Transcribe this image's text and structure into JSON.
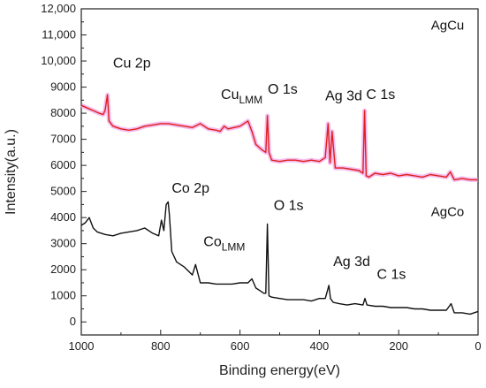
{
  "chart_data": {
    "type": "line",
    "title": "",
    "xlabel": "Binding energy(eV)",
    "ylabel": "Intensity(a.u.)",
    "xlim": [
      1000,
      0
    ],
    "ylim": [
      -500,
      12000
    ],
    "x_reversed": true,
    "xticks": [
      1000,
      800,
      600,
      400,
      200,
      0
    ],
    "yticks": [
      0,
      1000,
      2000,
      3000,
      4000,
      5000,
      6000,
      7000,
      8000,
      9000,
      10000,
      11000,
      12000
    ],
    "ytick_labels": [
      "0",
      "1000",
      "2000",
      "3000",
      "4000",
      "5000",
      "6000",
      "7000",
      "8000",
      "9000",
      "10,000",
      "11,000",
      "12,000"
    ],
    "grid": false,
    "series": [
      {
        "name": "AgCu",
        "color": "#e0201c",
        "halo_color": "#f0a0e8",
        "x": [
          1000,
          985,
          970,
          955,
          945,
          940,
          934,
          930,
          920,
          900,
          880,
          860,
          840,
          820,
          800,
          780,
          760,
          740,
          720,
          700,
          680,
          660,
          650,
          640,
          630,
          600,
          580,
          570,
          560,
          545,
          535,
          531,
          527,
          520,
          500,
          480,
          460,
          440,
          420,
          400,
          385,
          378,
          373,
          368,
          360,
          340,
          320,
          300,
          290,
          286,
          282,
          275,
          260,
          240,
          220,
          200,
          180,
          160,
          140,
          120,
          100,
          80,
          70,
          60,
          40,
          20,
          0
        ],
        "y": [
          8300,
          8200,
          8100,
          8000,
          7950,
          8100,
          8700,
          7700,
          7500,
          7400,
          7350,
          7400,
          7500,
          7550,
          7600,
          7600,
          7550,
          7500,
          7450,
          7600,
          7400,
          7350,
          7300,
          7500,
          7400,
          7500,
          7700,
          7300,
          6800,
          6600,
          6500,
          7900,
          6500,
          6200,
          6150,
          6200,
          6200,
          6150,
          6200,
          6150,
          6300,
          7600,
          6100,
          7300,
          5900,
          5900,
          5850,
          5800,
          5700,
          8100,
          5600,
          5550,
          5700,
          5650,
          5700,
          5600,
          5650,
          5600,
          5550,
          5650,
          5600,
          5550,
          5750,
          5450,
          5500,
          5450,
          5450
        ]
      },
      {
        "name": "AgCo",
        "color": "#111111",
        "x": [
          1000,
          990,
          980,
          970,
          960,
          940,
          920,
          900,
          880,
          860,
          840,
          820,
          805,
          798,
          792,
          786,
          781,
          778,
          772,
          760,
          740,
          720,
          712,
          700,
          680,
          660,
          640,
          620,
          600,
          580,
          570,
          560,
          550,
          540,
          535,
          531,
          527,
          520,
          500,
          480,
          460,
          440,
          420,
          400,
          385,
          376,
          372,
          365,
          350,
          330,
          310,
          290,
          285,
          280,
          260,
          240,
          220,
          200,
          180,
          160,
          140,
          120,
          100,
          80,
          68,
          60,
          40,
          20,
          0
        ],
        "y": [
          3700,
          3800,
          4000,
          3600,
          3450,
          3350,
          3300,
          3400,
          3450,
          3500,
          3600,
          3400,
          3300,
          3900,
          3500,
          4500,
          4600,
          4100,
          2700,
          2300,
          2100,
          1800,
          2200,
          1500,
          1500,
          1450,
          1450,
          1450,
          1500,
          1500,
          1650,
          1300,
          1200,
          1100,
          1100,
          3750,
          1000,
          950,
          900,
          850,
          850,
          850,
          800,
          900,
          900,
          1400,
          900,
          750,
          700,
          650,
          700,
          650,
          900,
          650,
          600,
          600,
          550,
          550,
          550,
          500,
          500,
          450,
          450,
          450,
          700,
          350,
          350,
          300,
          400
        ]
      }
    ],
    "annotations": [
      {
        "name": "cu-2p",
        "text": "Cu 2p",
        "sub": "",
        "x": 920,
        "y": 9750
      },
      {
        "name": "cu-lmm",
        "text": "Cu",
        "sub": "LMM",
        "x": 648,
        "y": 8550
      },
      {
        "name": "o-1s-agcu",
        "text": "O 1s",
        "sub": "",
        "x": 530,
        "y": 8750
      },
      {
        "name": "ag-3d-agcu",
        "text": "Ag 3d",
        "sub": "",
        "x": 385,
        "y": 8500
      },
      {
        "name": "c-1s-agcu",
        "text": "C 1s",
        "sub": "",
        "x": 282,
        "y": 8550
      },
      {
        "name": "co-2p",
        "text": "Co 2p",
        "sub": "",
        "x": 772,
        "y": 4950
      },
      {
        "name": "co-lmm",
        "text": "Co",
        "sub": "LMM",
        "x": 692,
        "y": 2900
      },
      {
        "name": "o-1s-agco",
        "text": "O 1s",
        "sub": "",
        "x": 515,
        "y": 4300
      },
      {
        "name": "ag-3d-agco",
        "text": "Ag 3d",
        "sub": "",
        "x": 365,
        "y": 2150
      },
      {
        "name": "c-1s-agco",
        "text": "C 1s",
        "sub": "",
        "x": 255,
        "y": 1650
      }
    ],
    "series_labels": [
      {
        "name": "agcu",
        "text": "AgCu",
        "x": 35,
        "y": 11200
      },
      {
        "name": "agco",
        "text": "AgCo",
        "x": 35,
        "y": 4050
      }
    ]
  }
}
